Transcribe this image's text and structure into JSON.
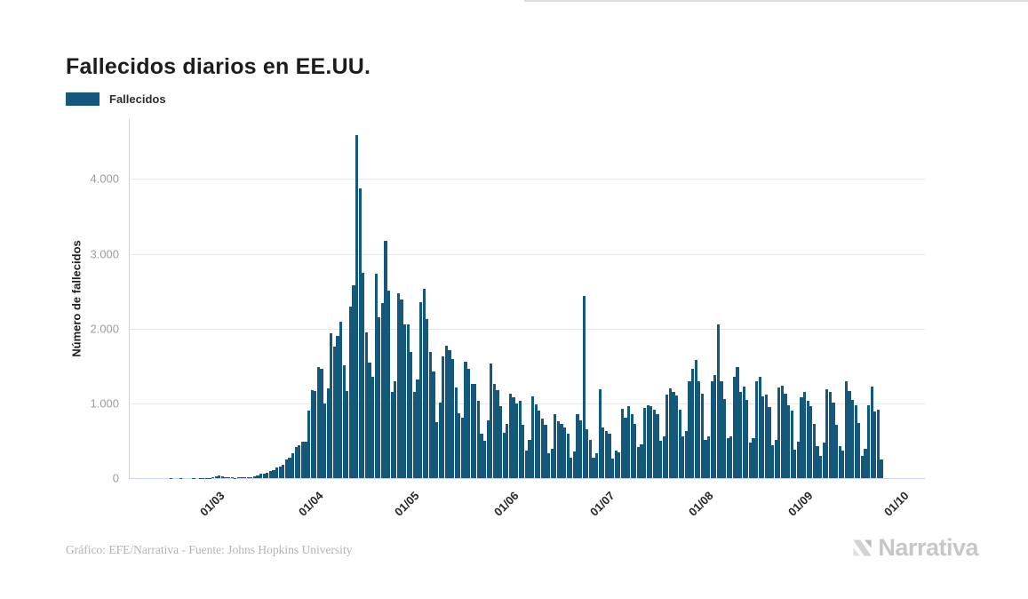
{
  "title": "Fallecidos diarios en EE.UU.",
  "legend": {
    "label": "Fallecidos",
    "swatch_color": "#14587c"
  },
  "footer": {
    "credit": "Gráfico: EFE/Narrativa - Fuente: Johns Hopkins University"
  },
  "branding": {
    "logo_text": "Narrativa",
    "logo_icon": "narrativa-n-mark"
  },
  "chart_data": {
    "type": "bar",
    "title": "Fallecidos diarios en EE.UU.",
    "series_name": "Fallecidos",
    "xlabel": "",
    "ylabel": "Número de fallecidos",
    "bar_color": "#14587c",
    "grid": "horizontal",
    "legend_position": "top-left",
    "ylim": [
      0,
      4800
    ],
    "y_ticks": [
      {
        "value": 0,
        "label": "0"
      },
      {
        "value": 1000,
        "label": "1.000"
      },
      {
        "value": 2000,
        "label": "2.000"
      },
      {
        "value": 3000,
        "label": "3.000"
      },
      {
        "value": 4000,
        "label": "4.000"
      }
    ],
    "x_ticks": [
      {
        "label": "01/03",
        "day_index": 16
      },
      {
        "label": "01/04",
        "day_index": 47
      },
      {
        "label": "01/05",
        "day_index": 77
      },
      {
        "label": "01/06",
        "day_index": 108
      },
      {
        "label": "01/07",
        "day_index": 138
      },
      {
        "label": "01/08",
        "day_index": 169
      },
      {
        "label": "01/09",
        "day_index": 200
      },
      {
        "label": "01/10",
        "day_index": 230
      }
    ],
    "start_date": "2020-02-14",
    "frequency": "daily",
    "values": [
      0,
      0,
      0,
      1,
      0,
      0,
      1,
      0,
      0,
      0,
      1,
      0,
      2,
      1,
      3,
      4,
      8,
      22,
      30,
      26,
      14,
      10,
      8,
      6,
      10,
      12,
      14,
      12,
      16,
      20,
      40,
      55,
      60,
      70,
      90,
      110,
      140,
      150,
      180,
      247,
      268,
      330,
      411,
      441,
      485,
      489,
      899,
      1180,
      1170,
      1480,
      1460,
      1000,
      1200,
      1935,
      1760,
      1900,
      2090,
      1515,
      1160,
      2290,
      2580,
      4591,
      3870,
      2750,
      1950,
      1540,
      1350,
      2730,
      2150,
      2340,
      3170,
      2510,
      1150,
      1300,
      2470,
      2390,
      2050,
      2060,
      1690,
      1154,
      1324,
      2350,
      2528,
      2129,
      1687,
      1422,
      750,
      1008,
      1630,
      1772,
      1715,
      1595,
      1218,
      865,
      808,
      1552,
      1461,
      1263,
      1260,
      1032,
      592,
      505,
      774,
      1535,
      1265,
      1175,
      960,
      605,
      730,
      1132,
      1083,
      995,
      1036,
      709,
      373,
      510,
      1093,
      982,
      905,
      802,
      714,
      330,
      389,
      852,
      760,
      720,
      680,
      600,
      270,
      360,
      850,
      770,
      2437,
      650,
      510,
      270,
      330,
      1190,
      680,
      630,
      600,
      260,
      370,
      350,
      930,
      810,
      960,
      850,
      730,
      420,
      450,
      935,
      975,
      963,
      920,
      850,
      500,
      560,
      1120,
      1205,
      1150,
      1100,
      915,
      560,
      630,
      1300,
      1460,
      1580,
      1290,
      1130,
      515,
      560,
      1300,
      1380,
      2060,
      1290,
      1060,
      530,
      560,
      1350,
      1490,
      1150,
      1220,
      1050,
      480,
      530,
      1300,
      1360,
      1090,
      1120,
      950,
      440,
      510,
      1210,
      1240,
      1130,
      980,
      900,
      380,
      490,
      1080,
      1150,
      1030,
      960,
      730,
      430,
      300,
      470,
      1190,
      1150,
      1010,
      710,
      430,
      370,
      1290,
      1160,
      1050,
      980,
      740,
      300,
      390,
      970,
      1229,
      896,
      920,
      245
    ]
  }
}
